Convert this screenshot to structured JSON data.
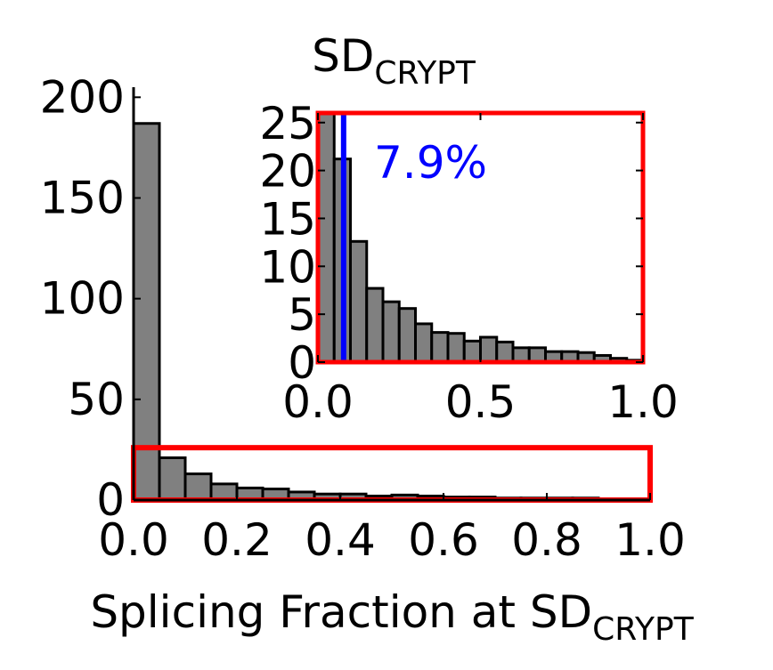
{
  "title": {
    "main": "SD",
    "sub": "CRYPT"
  },
  "annotation": "7.9%",
  "colors": {
    "bar": "#808080",
    "highlight": "#ff0000",
    "marker": "#0000ff",
    "text": "#000000"
  },
  "chart_data": [
    {
      "type": "bar",
      "xlabel": {
        "main": "Splicing Fraction at SD",
        "sub": "CRYPT"
      },
      "ylabel": "",
      "xlim": [
        0.0,
        1.0
      ],
      "ylim": [
        0,
        205
      ],
      "xticks": [
        "0.0",
        "0.2",
        "0.4",
        "0.6",
        "0.8",
        "1.0"
      ],
      "yticks": [
        "0",
        "50",
        "100",
        "150",
        "200"
      ],
      "bin_width": 0.05,
      "bin_starts": [
        0.0,
        0.05,
        0.1,
        0.15,
        0.2,
        0.25,
        0.3,
        0.35,
        0.4,
        0.45,
        0.5,
        0.55,
        0.6,
        0.65,
        0.7,
        0.75,
        0.8,
        0.85,
        0.9,
        0.95
      ],
      "values": [
        187,
        21,
        13,
        8,
        6,
        5.5,
        4,
        3,
        3,
        2,
        2.5,
        2,
        1.5,
        1.5,
        1,
        1,
        1,
        1,
        0.5,
        0.3
      ],
      "highlight_box": {
        "x": [
          0.0,
          1.0
        ],
        "y": [
          0,
          26
        ]
      }
    },
    {
      "type": "bar",
      "xlim": [
        0.0,
        1.0
      ],
      "ylim": [
        0,
        26
      ],
      "xticks": [
        "0.0",
        "0.5",
        "1.0"
      ],
      "yticks": [
        "0",
        "5",
        "10",
        "15",
        "20",
        "25"
      ],
      "bin_width": 0.05,
      "bin_starts": [
        0.0,
        0.05,
        0.1,
        0.15,
        0.2,
        0.25,
        0.3,
        0.35,
        0.4,
        0.45,
        0.5,
        0.55,
        0.6,
        0.65,
        0.7,
        0.75,
        0.8,
        0.85,
        0.9,
        0.95
      ],
      "values": [
        26,
        21.2,
        12.6,
        7.7,
        6.3,
        5.6,
        4.0,
        3.1,
        3.0,
        2.2,
        2.6,
        2.1,
        1.5,
        1.5,
        1.1,
        1.1,
        1.0,
        0.7,
        0.4,
        0.2
      ],
      "marker_x": 0.079
    }
  ]
}
